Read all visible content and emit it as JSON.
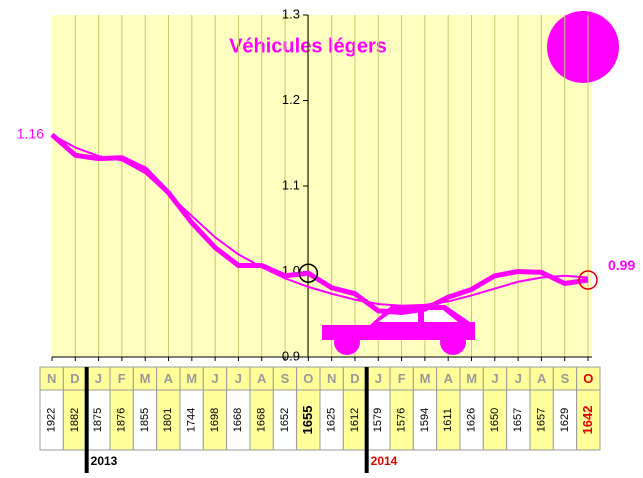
{
  "chart_data": {
    "type": "line",
    "title": "Véhicules légers",
    "categories": [
      "N",
      "D",
      "J",
      "F",
      "M",
      "A",
      "M",
      "J",
      "J",
      "A",
      "S",
      "O",
      "N",
      "D",
      "J",
      "F",
      "M",
      "A",
      "M",
      "J",
      "J",
      "A",
      "S",
      "O"
    ],
    "series": [
      {
        "color": "#ff00ff",
        "values": [
          1.16,
          1.136,
          1.132,
          1.133,
          1.12,
          1.092,
          1.057,
          1.028,
          1.007,
          1.007,
          0.995,
          0.998,
          0.981,
          0.974,
          0.954,
          0.952,
          0.956,
          0.97,
          0.979,
          0.995,
          1.0,
          0.999,
          0.986,
          0.99
        ],
        "value_labels": [
          "1.16",
          null,
          null,
          null,
          null,
          null,
          null,
          null,
          null,
          null,
          null,
          null,
          null,
          null,
          null,
          null,
          null,
          null,
          null,
          null,
          null,
          null,
          null,
          "0.99"
        ]
      },
      {
        "color": "#ff00ff",
        "values": [
          1.16,
          1.145,
          1.135,
          1.13,
          1.115,
          1.09,
          1.065,
          1.04,
          1.02,
          1.005,
          0.992,
          0.982,
          0.974,
          0.967,
          0.962,
          0.96,
          0.961,
          0.965,
          0.972,
          0.98,
          0.988,
          0.993,
          0.995,
          0.993
        ]
      }
    ],
    "ylim": [
      0.9,
      1.3
    ],
    "yticks": [
      0.9,
      {
        "value": 1,
        "label": "1.0"
      },
      1.1,
      1.2,
      1.3
    ],
    "grid": true,
    "table": {
      "counts": [
        "1922",
        "1882",
        "1875",
        "1876",
        "1855",
        "1801",
        "1744",
        "1698",
        "1668",
        "1668",
        "1652",
        "1655",
        "1625",
        "1612",
        "1579",
        "1576",
        "1594",
        "1611",
        "1626",
        "1650",
        "1657",
        "1657",
        "1629",
        "1642"
      ],
      "years": [
        null,
        null,
        "2013",
        null,
        null,
        null,
        null,
        null,
        null,
        null,
        null,
        null,
        null,
        null,
        "2014",
        null,
        null,
        null,
        null,
        null,
        null,
        null,
        null,
        null
      ]
    }
  }
}
